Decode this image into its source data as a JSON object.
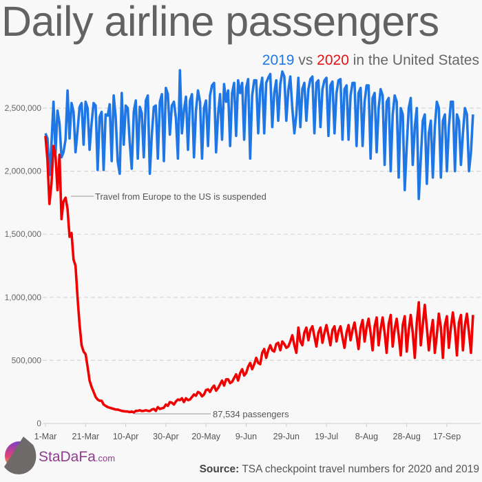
{
  "title": "Daily airline passengers",
  "subtitle": {
    "part1": "2019",
    "part2": " vs ",
    "part3": "2020",
    "part4": " in the United States"
  },
  "source": {
    "label": "Source:",
    "text": " TSA checkpoint travel numbers for 2020 and 2019"
  },
  "brand": {
    "name": "StaDaFa",
    "suffix": ".com"
  },
  "colors": {
    "2019": "#1f77e5",
    "2020": "#f00000",
    "grid": "#d4d4d4",
    "text": "#555555"
  },
  "chart_data": {
    "type": "line",
    "title": "Daily airline passengers",
    "subtitle": "2019 vs 2020 in the United States",
    "x_start": "1-Mar",
    "x_ticks": [
      "1-Mar",
      "21-Mar",
      "10-Apr",
      "30-Apr",
      "20-May",
      "9-Jun",
      "29-Jun",
      "19-Jul",
      "8-Aug",
      "28-Aug",
      "17-Sep"
    ],
    "y_ticks": [
      0,
      500000,
      1000000,
      1500000,
      2000000,
      2500000
    ],
    "y_tick_labels": [
      "0",
      "500,000",
      "1,000,000",
      "1,500,000",
      "2,000,000",
      "2,500,000"
    ],
    "ylim": [
      0,
      2850000
    ],
    "grid": "horizontal dashed",
    "legend": "subtitle colors",
    "annotations": [
      {
        "text": "Travel from Europe to the US is suspended",
        "x": "12-Mar",
        "y": 1800000
      },
      {
        "text": "87,534 passengers",
        "x": "14-Apr",
        "y": 87534
      }
    ],
    "series": [
      {
        "name": "2019",
        "values": [
          2300000,
          2260000,
          1970000,
          2210000,
          2550000,
          2140000,
          2480000,
          2380000,
          2110000,
          2150000,
          2250000,
          2640000,
          2260000,
          2540000,
          2470000,
          2150000,
          2320000,
          2510000,
          2540000,
          2210000,
          2550000,
          2500000,
          2170000,
          2380000,
          2540000,
          2520000,
          2010000,
          2430000,
          2470000,
          2010000,
          2450000,
          2440000,
          2530000,
          2080000,
          2600000,
          2430000,
          2080000,
          1980000,
          2620000,
          2210000,
          2520000,
          2500000,
          2230000,
          2020000,
          2470000,
          2560000,
          2100000,
          2510000,
          2460000,
          2110000,
          2560000,
          2600000,
          1980000,
          2290000,
          2510000,
          2520000,
          2100000,
          2550000,
          2610000,
          2080000,
          2660000,
          2610000,
          2290000,
          2520000,
          2550000,
          2420000,
          2100000,
          2800000,
          2300000,
          2480000,
          2590000,
          2170000,
          2560000,
          2610000,
          2110000,
          2480000,
          2640000,
          2550000,
          2100000,
          2500000,
          2560000,
          2200000,
          2600000,
          2680000,
          2700000,
          2150000,
          2450000,
          2610000,
          2250000,
          2690000,
          2550000,
          2640000,
          2200000,
          2620000,
          2700000,
          2280000,
          2720000,
          2620000,
          2700000,
          2250000,
          2660000,
          2730000,
          2100000,
          2600000,
          2720000,
          2720000,
          2300000,
          2650000,
          2740000,
          2300000,
          2700000,
          2740000,
          2770000,
          2350000,
          2620000,
          2720000,
          2400000,
          2690000,
          2790000,
          2750000,
          2400000,
          2640000,
          2750000,
          2500000,
          2300000,
          2450000,
          2740000,
          2350000,
          2650000,
          2700000,
          2400000,
          2650000,
          2730000,
          2750000,
          2300000,
          2700000,
          2720000,
          2350000,
          2650000,
          2720000,
          2740000,
          2280000,
          2680000,
          2710000,
          2300000,
          2620000,
          2720000,
          2730000,
          2250000,
          2650000,
          2680000,
          2250000,
          2600000,
          2700000,
          2700000,
          2200000,
          2620000,
          2660000,
          2200000,
          2550000,
          2680000,
          2680000,
          2100000,
          2580000,
          2620000,
          2150000,
          2500000,
          2650000,
          2600000,
          2050000,
          2550000,
          2580000,
          2000000,
          2450000,
          2600000,
          2550000,
          1950000,
          2500000,
          2450000,
          1850000,
          2200000,
          2500000,
          2580000,
          2050000,
          2350000,
          2500000,
          1780000,
          2100000,
          2400000,
          2450000,
          1900000,
          2300000,
          2400000,
          1950000,
          2350000,
          2550000,
          2500000,
          1950000,
          2400000,
          2450000,
          2000000,
          2350000,
          2550000,
          2550000,
          2000000,
          2450000,
          2400000,
          2050000,
          2300000,
          2500000,
          2450000,
          2000000,
          2150000,
          2450000
        ]
      },
      {
        "name": "2020",
        "values": [
          2280000,
          2090000,
          1740000,
          1900000,
          2200000,
          2120000,
          1850000,
          2130000,
          1620000,
          1760000,
          1790000,
          1700000,
          1480000,
          1510000,
          1300000,
          1250000,
          1000000,
          780000,
          620000,
          570000,
          550000,
          450000,
          340000,
          290000,
          250000,
          210000,
          190000,
          180000,
          180000,
          150000,
          140000,
          130000,
          125000,
          120000,
          115000,
          110000,
          110000,
          105000,
          100000,
          97000,
          95000,
          95000,
          90000,
          95000,
          87534,
          100000,
          100000,
          105000,
          98000,
          100000,
          105000,
          100000,
          98000,
          110000,
          115000,
          100000,
          130000,
          115000,
          120000,
          125000,
          150000,
          140000,
          170000,
          165000,
          150000,
          175000,
          190000,
          185000,
          200000,
          170000,
          200000,
          185000,
          190000,
          210000,
          230000,
          220000,
          250000,
          240000,
          215000,
          230000,
          265000,
          270000,
          250000,
          280000,
          300000,
          260000,
          280000,
          310000,
          340000,
          300000,
          350000,
          350000,
          320000,
          330000,
          360000,
          390000,
          340000,
          400000,
          430000,
          380000,
          400000,
          450000,
          480000,
          430000,
          470000,
          520000,
          480000,
          470000,
          560000,
          590000,
          520000,
          580000,
          620000,
          580000,
          570000,
          630000,
          640000,
          580000,
          650000,
          630000,
          600000,
          610000,
          650000,
          700000,
          620000,
          560000,
          760000,
          650000,
          620000,
          720000,
          760000,
          660000,
          740000,
          770000,
          690000,
          610000,
          720000,
          760000,
          640000,
          720000,
          780000,
          700000,
          620000,
          740000,
          770000,
          650000,
          730000,
          770000,
          680000,
          600000,
          720000,
          780000,
          660000,
          740000,
          800000,
          700000,
          590000,
          760000,
          820000,
          650000,
          760000,
          830000,
          720000,
          580000,
          770000,
          840000,
          620000,
          750000,
          840000,
          720000,
          560000,
          790000,
          860000,
          610000,
          750000,
          830000,
          700000,
          540000,
          780000,
          850000,
          570000,
          740000,
          860000,
          720000,
          520000,
          800000,
          960000,
          620000,
          780000,
          940000,
          760000,
          580000,
          720000,
          820000,
          560000,
          700000,
          870000,
          760000,
          520000,
          780000,
          850000,
          600000,
          760000,
          880000,
          750000,
          540000,
          800000,
          860000,
          580000,
          780000,
          870000,
          720000,
          560000,
          860000
        ]
      }
    ]
  }
}
